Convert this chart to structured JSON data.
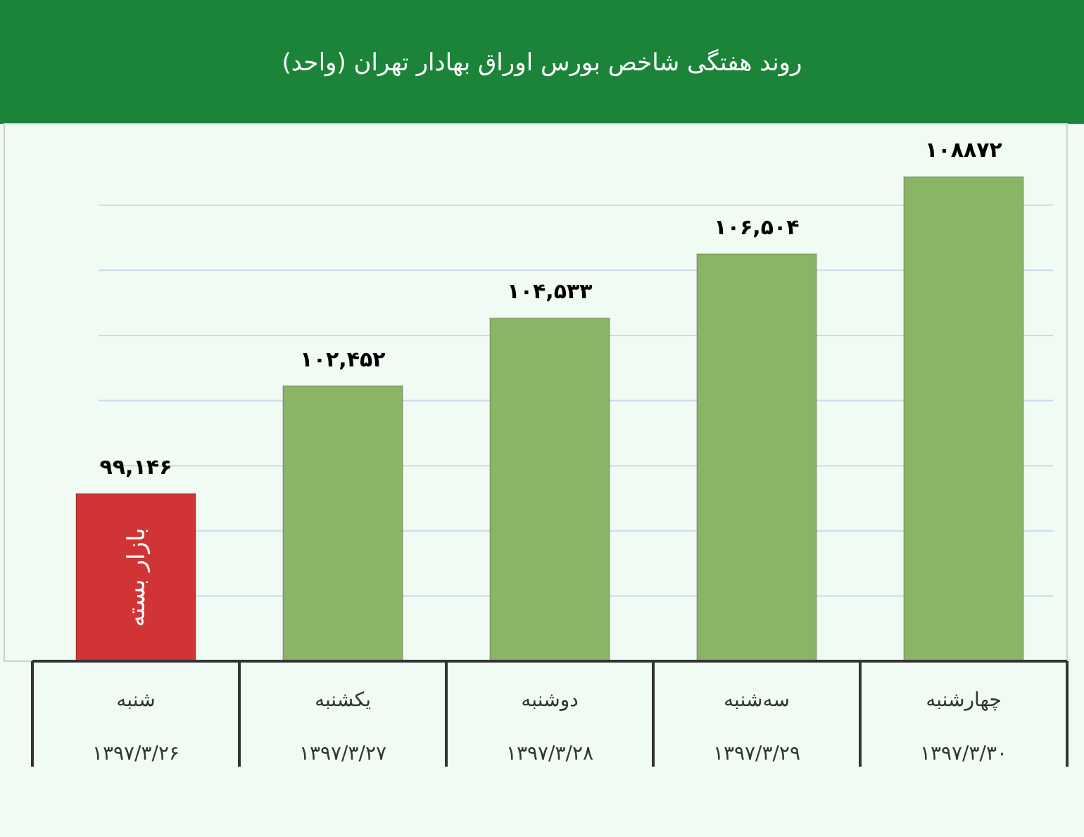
{
  "chart_data": {
    "type": "bar",
    "title": "روند هفتگی شاخص بورس اوراق بهادار تهران (واحد)",
    "categories": [
      "شنبه\n۱۳۹۷/۳/۲۶",
      "یکشنبه\n۱۳۹۷/۳/۲۷",
      "دوشنبه\n۱۳۹۷/۳/۲۸",
      "سه‌شنبه\n۱۳۹۷/۳/۲۹",
      "چهارشنبه\n۱۳۹۷/۳/۳۰"
    ],
    "values": [
      99146,
      102452,
      104533,
      106504,
      108872
    ],
    "colors": [
      "#d13434",
      "#8ab466",
      "#8ab466",
      "#8ab466",
      "#8ab466"
    ],
    "value_labels": [
      "۹۹,۱۴۶",
      "۱۰۲,۴۵۲",
      "۱۰۴,۵۳۳",
      "۱۰۶,۵۰۴",
      "۱۰۸۸۷۲"
    ],
    "ylim": [
      94000,
      110500
    ],
    "yticks": [
      {
        "value": 96000,
        "label": null
      },
      {
        "value": 98000,
        "label": null
      },
      {
        "value": 100000,
        "label": null
      },
      {
        "value": 102000,
        "label": null
      },
      {
        "value": 104000,
        "label": null
      },
      {
        "value": 106000,
        "label": null
      },
      {
        "value": 108000,
        "label": null
      }
    ],
    "tick_labels": "x",
    "grid": "y",
    "annotations": [
      "بازار بسته"
    ]
  }
}
